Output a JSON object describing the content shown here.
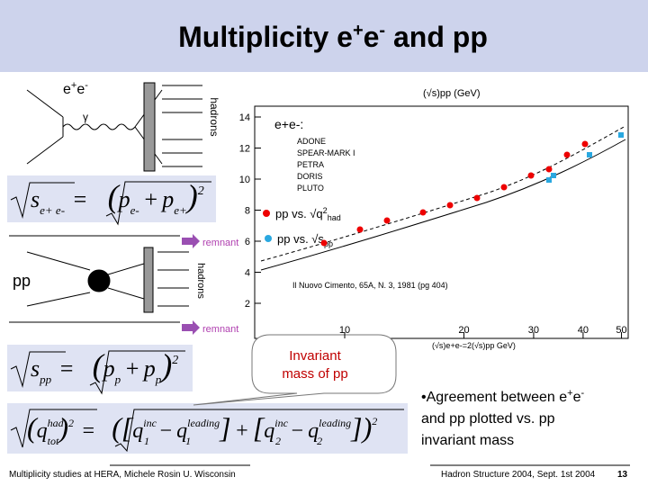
{
  "title": {
    "pre": "Multiplicity e",
    "sup1": "+",
    "mid": "e",
    "sup2": "-",
    "post": " and pp"
  },
  "diagram_ee": {
    "label": "e",
    "label_sup1": "+",
    "label_mid": "e",
    "label_sup2": "-",
    "hadrons": "hadrons",
    "gamma": "γ"
  },
  "diagram_pp": {
    "label": "pp",
    "remnant_top": "remnant",
    "remnant_bottom": "remnant",
    "hadrons": "hadrons"
  },
  "formula_ee": {
    "lhs": "s",
    "lhs_sub": "e+ e-",
    "eq": "=",
    "p1": "p",
    "p1_sub": "e-",
    "plus": "+",
    "p2": "p",
    "p2_sub": "e+",
    "power": "2"
  },
  "formula_pp": {
    "lhs": "s",
    "lhs_sub": "pp",
    "eq": "=",
    "p1": "p",
    "p1_sub": "p",
    "plus": "+",
    "p2": "p",
    "p2_sub": "p",
    "power": "2"
  },
  "formula_q": {
    "q": "q",
    "q_sup": "had",
    "q_sub": "tot",
    "q_pow": "2",
    "eq": "=",
    "a": "q",
    "a_sup": "inc",
    "a_sub": "1",
    "minus1": "−",
    "b": "q",
    "b_sup": "leading",
    "b_sub": "1",
    "plus": "+",
    "c": "q",
    "c_sup": "inc",
    "c_sub": "2",
    "minus2": "−",
    "d": "q",
    "d_sup": "leading",
    "d_sub": "2",
    "power": "2"
  },
  "plot": {
    "axis_title": "(√s)pp (GeV)",
    "x_title": "(√s)e+e-=2(√s)pp GeV)",
    "legend_heading": "e+e-:",
    "legend_items": [
      "ADONE",
      "SPEAR-MARK I",
      "PETRA",
      "DORIS",
      "PLUTO"
    ],
    "yticks": [
      2,
      4,
      6,
      8,
      10,
      12,
      14
    ],
    "xticks": [
      10,
      20,
      30,
      40,
      50
    ],
    "citation": "Il Nuovo Cimento, 65A, N. 3, 1981 (pg 404)",
    "red_label": "pp vs. √q",
    "red_sup": "2",
    "red_sub": "had",
    "blue_label": "pp vs. √s",
    "blue_sub": "pp"
  },
  "callout": {
    "lines": [
      "Invariant",
      "mass of pp"
    ]
  },
  "bullet": {
    "pre": "•Agreement between e",
    "sup1": "+",
    "mid": "e",
    "sup2": "-",
    "lines": [
      "and pp plotted vs. pp",
      "invariant mass"
    ]
  },
  "footer": {
    "left": "Multiplicity studies at HERA, Michele Rosin U. Wisconsin",
    "right": "Hadron Structure 2004, Sept. 1st 2004",
    "page": "13"
  }
}
